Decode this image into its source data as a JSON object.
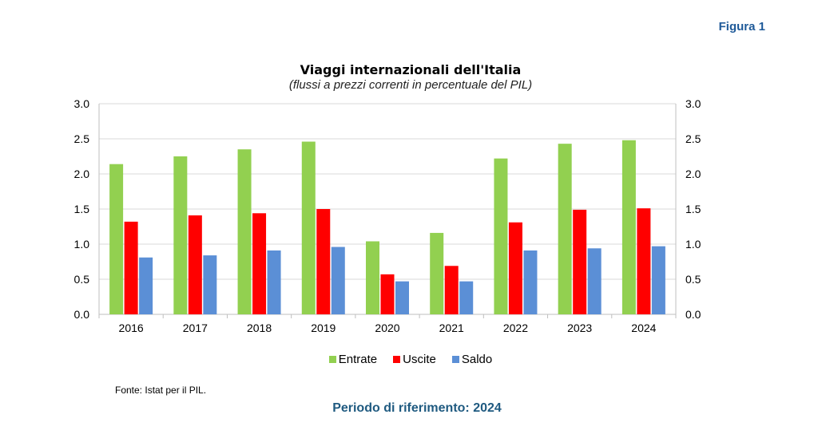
{
  "figure_label": "Figura 1",
  "source": "Fonte: Istat per il PIL.",
  "footer": "Periodo di riferimento: 2024",
  "chart_data": {
    "type": "bar",
    "title": "Viaggi internazionali dell'Italia",
    "subtitle": "(flussi a prezzi correnti in percentuale del PIL)",
    "categories": [
      "2016",
      "2017",
      "2018",
      "2019",
      "2020",
      "2021",
      "2022",
      "2023",
      "2024"
    ],
    "series": [
      {
        "name": "Entrate",
        "color": "#92d050",
        "values": [
          2.14,
          2.25,
          2.35,
          2.46,
          1.04,
          1.16,
          2.22,
          2.43,
          2.48
        ]
      },
      {
        "name": "Uscite",
        "color": "#ff0000",
        "values": [
          1.32,
          1.41,
          1.44,
          1.5,
          0.57,
          0.69,
          1.31,
          1.49,
          1.51
        ]
      },
      {
        "name": "Saldo",
        "color": "#5b8fd6",
        "values": [
          0.81,
          0.84,
          0.91,
          0.96,
          0.47,
          0.47,
          0.91,
          0.94,
          0.97
        ]
      }
    ],
    "ylim": [
      0,
      3.0
    ],
    "yticks": [
      "0.0",
      "0.5",
      "1.0",
      "1.5",
      "2.0",
      "2.5",
      "3.0"
    ],
    "y2ticks": [
      "0.0",
      "0.5",
      "1.0",
      "1.5",
      "2.0",
      "2.5",
      "3.0"
    ],
    "grid": true,
    "legend_position": "bottom"
  }
}
